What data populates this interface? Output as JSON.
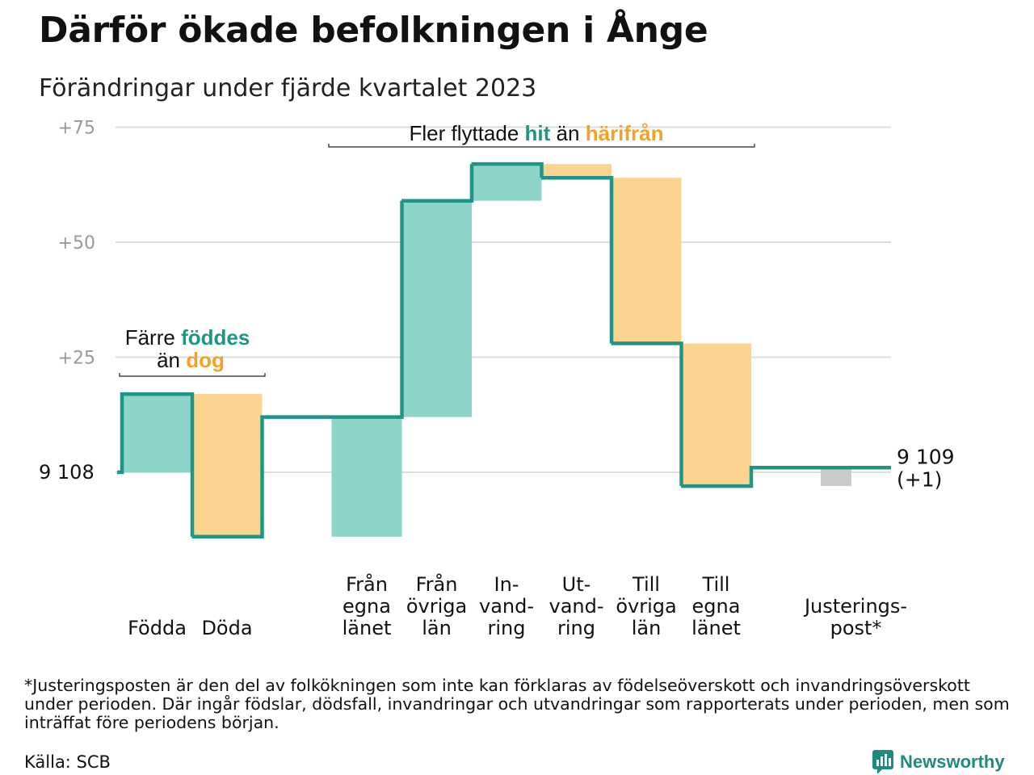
{
  "header": {
    "title": "Därför ökade befolkningen i Ånge",
    "subtitle": "Förändringar under fjärde kvartalet 2023"
  },
  "colors": {
    "inflow": "#8dd5cb",
    "outflow": "#fbd48f",
    "adjustment": "#cccccc",
    "line": "#1f9585",
    "accent_teal": "#1f9585",
    "accent_orange": "#f2a327",
    "grid": "#dddddd",
    "tick_text": "#999999"
  },
  "annotations": {
    "births": {
      "prefix": "Färre",
      "teal": "föddes",
      "line2_prefix": "än",
      "orange": "dog"
    },
    "migration": {
      "prefix": "Fler flyttade",
      "teal": "hit",
      "middle": "än",
      "orange": "härifrån"
    }
  },
  "chart_data": {
    "type": "waterfall",
    "start_label": "9  108",
    "end_label": [
      "9 109",
      "(+1)"
    ],
    "y_ticks": [
      {
        "value": 75,
        "label": "+75"
      },
      {
        "value": 50,
        "label": "+50"
      },
      {
        "value": 25,
        "label": "+25"
      }
    ],
    "ylim": [
      -14,
      75
    ],
    "categories": [
      {
        "label": [
          "Födda"
        ],
        "delta": 17,
        "kind": "inflow",
        "slot": 0
      },
      {
        "label": [
          "Döda"
        ],
        "delta": -31,
        "kind": "outflow",
        "slot": 1
      },
      {
        "label": [
          "Från",
          "egna",
          "länet"
        ],
        "delta": 26,
        "kind": "inflow",
        "slot": 3
      },
      {
        "label": [
          "Från",
          "övriga",
          "län"
        ],
        "delta": 47,
        "kind": "inflow",
        "slot": 4
      },
      {
        "label": [
          "In-",
          "vand-",
          "ring"
        ],
        "delta": 8,
        "kind": "inflow",
        "slot": 5
      },
      {
        "label": [
          "Ut-",
          "vand-",
          "ring"
        ],
        "delta": -3,
        "kind": "outflow",
        "slot": 6
      },
      {
        "label": [
          "Till",
          "övriga",
          "län"
        ],
        "delta": -36,
        "kind": "outflow",
        "slot": 7
      },
      {
        "label": [
          "Till",
          "egna",
          "länet"
        ],
        "delta": -31,
        "kind": "outflow",
        "slot": 8
      },
      {
        "label": [
          "Justerings-",
          "post*"
        ],
        "delta": 4,
        "kind": "adjustment",
        "slot": 10
      }
    ]
  },
  "footer": {
    "footnote": "*Justeringsposten är den del av folkökningen som inte kan förklaras av födelseöverskott och invandringsöverskott under perioden. Där ingår födslar, dödsfall, invandringar och utvandringar som rapporterats under perioden, men som inträffat före periodens början.",
    "source": "Källa: SCB",
    "brand": "Newsworthy"
  }
}
